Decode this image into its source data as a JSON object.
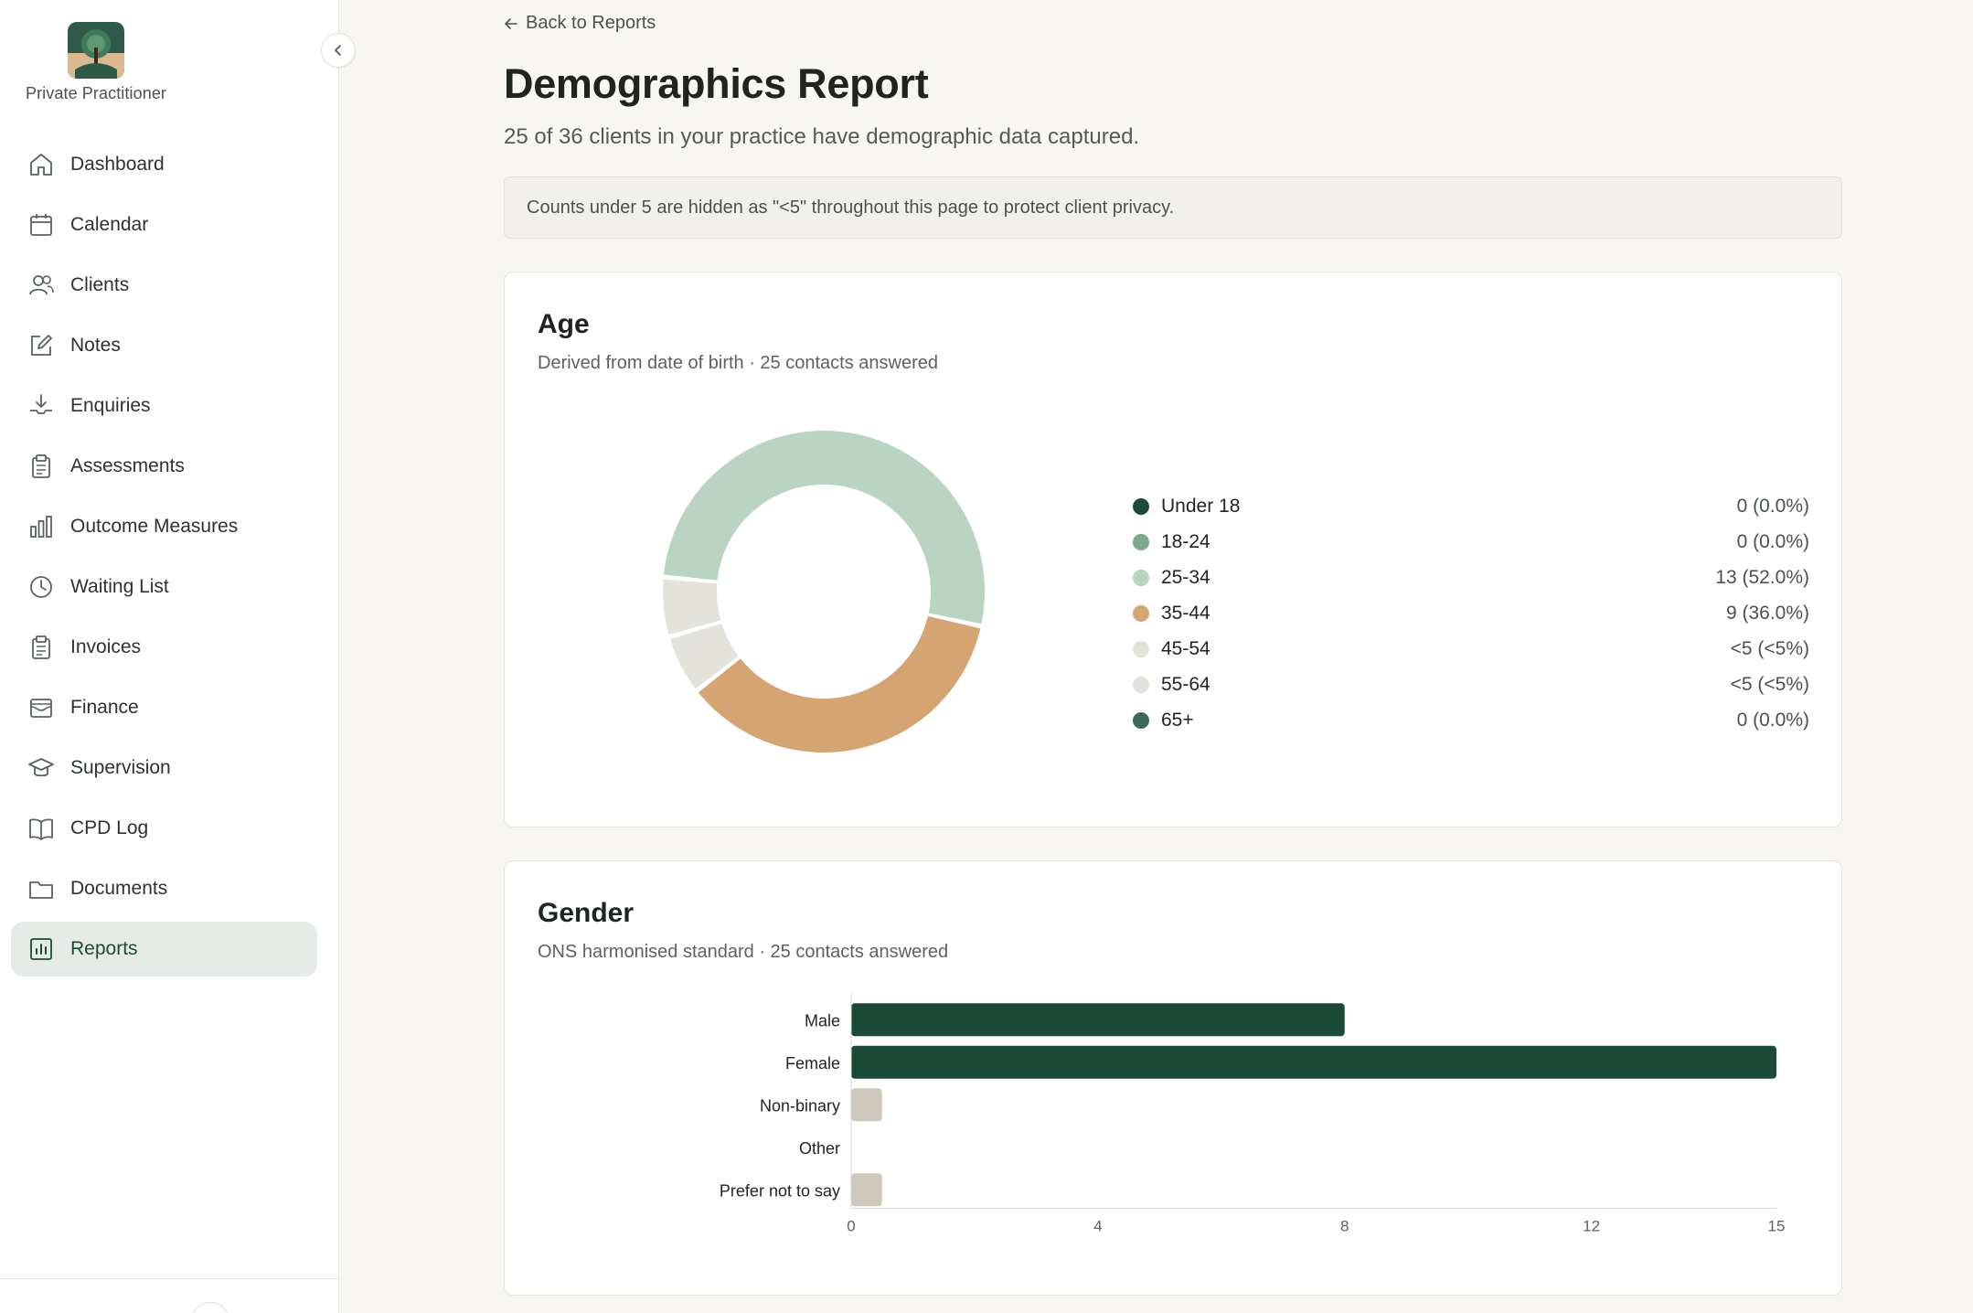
{
  "sidebar": {
    "practice_name": "Private Practitioner",
    "items": [
      {
        "label": "Dashboard",
        "icon": "home-icon"
      },
      {
        "label": "Calendar",
        "icon": "calendar-icon"
      },
      {
        "label": "Clients",
        "icon": "users-icon"
      },
      {
        "label": "Notes",
        "icon": "edit-icon"
      },
      {
        "label": "Enquiries",
        "icon": "inbox-download-icon"
      },
      {
        "label": "Assessments",
        "icon": "clipboard-icon"
      },
      {
        "label": "Outcome Measures",
        "icon": "bar-chart-icon"
      },
      {
        "label": "Waiting List",
        "icon": "clock-icon"
      },
      {
        "label": "Invoices",
        "icon": "clipboard-icon"
      },
      {
        "label": "Finance",
        "icon": "wallet-icon"
      },
      {
        "label": "Supervision",
        "icon": "graduation-cap-icon"
      },
      {
        "label": "CPD Log",
        "icon": "book-icon"
      },
      {
        "label": "Documents",
        "icon": "folder-icon"
      },
      {
        "label": "Reports",
        "icon": "report-chart-icon",
        "active": true
      }
    ]
  },
  "header": {
    "back_label": "Back to Reports",
    "title": "Demographics Report",
    "subtitle": "25 of 36 clients in your practice have demographic data captured.",
    "notice": "Counts under 5 are hidden as \"<5\" throughout this page to protect client privacy."
  },
  "age": {
    "title": "Age",
    "subtitle": "Derived from date of birth · 25 contacts answered"
  },
  "gender": {
    "title": "Gender",
    "subtitle": "ONS harmonised standard · 25 contacts answered"
  },
  "chart_data": [
    {
      "type": "pie",
      "variant": "donut",
      "categories": [
        "Under 18",
        "18-24",
        "25-34",
        "35-44",
        "45-54",
        "55-64",
        "65+"
      ],
      "values": [
        0,
        0,
        13,
        9,
        1.5,
        1.5,
        0
      ],
      "display_values": [
        "0 (0.0%)",
        "0 (0.0%)",
        "13 (52.0%)",
        "9 (36.0%)",
        "<5 (<5%)",
        "<5 (<5%)",
        "0 (0.0%)"
      ],
      "colors": [
        "#1b4b38",
        "#7fa88f",
        "#b9d4c2",
        "#d4a472",
        "#e3e2dd",
        "#e3e2dd",
        "#3d6b57"
      ],
      "legend": "right"
    },
    {
      "type": "bar",
      "orientation": "horizontal",
      "categories": [
        "Male",
        "Female",
        "Non-binary",
        "Other",
        "Prefer not to say"
      ],
      "values": [
        8,
        15,
        0.5,
        0,
        0.5
      ],
      "colors": [
        "#1b4b38",
        "#1b4b38",
        "#cfc8bc",
        "#cfc8bc",
        "#cfc8bc"
      ],
      "xlim": [
        0,
        15
      ],
      "xticks": [
        "0",
        "4",
        "8",
        "12",
        "15"
      ],
      "tick_values": [
        0,
        4,
        8,
        12,
        15
      ]
    }
  ]
}
